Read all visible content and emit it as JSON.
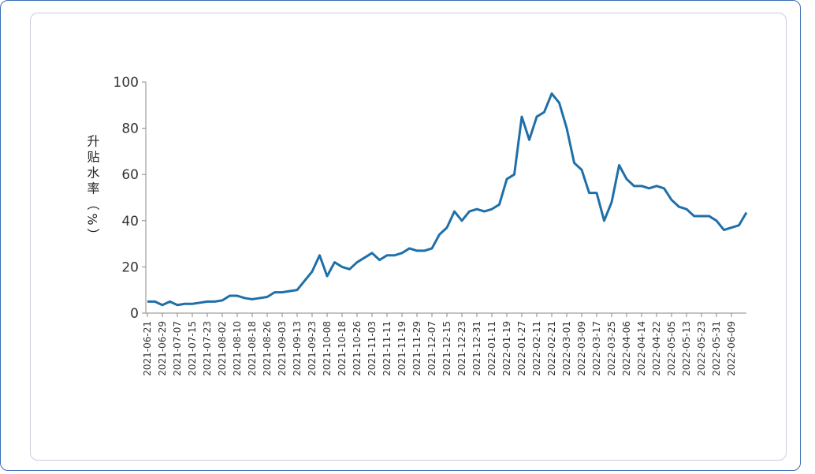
{
  "chart_data": {
    "type": "line",
    "y_label": "升贴水率（%）",
    "categories": [
      "2021-06-21",
      null,
      "2021-06-29",
      null,
      "2021-07-07",
      null,
      "2021-07-15",
      null,
      "2021-07-23",
      null,
      "2021-08-02",
      null,
      "2021-08-10",
      null,
      "2021-08-18",
      null,
      "2021-08-26",
      null,
      "2021-09-03",
      null,
      "2021-09-13",
      null,
      "2021-09-23",
      null,
      "2021-10-08",
      null,
      "2021-10-18",
      null,
      "2021-10-26",
      null,
      "2021-11-03",
      null,
      "2021-11-11",
      null,
      "2021-11-19",
      null,
      "2021-11-29",
      null,
      "2021-12-07",
      null,
      "2021-12-15",
      null,
      "2021-12-23",
      null,
      "2021-12-31",
      null,
      "2022-01-11",
      null,
      "2022-01-19",
      null,
      "2022-01-27",
      null,
      "2022-02-11",
      null,
      "2022-02-21",
      null,
      "2022-03-01",
      null,
      "2022-03-09",
      null,
      "2022-03-17",
      null,
      "2022-03-25",
      null,
      "2022-04-06",
      null,
      "2022-04-14",
      null,
      "2022-04-22",
      null,
      "2022-05-05",
      null,
      "2022-05-13",
      null,
      "2022-05-23",
      null,
      "2022-05-31",
      null,
      "2022-06-09",
      null,
      null
    ],
    "series": [
      {
        "name": "升贴水率",
        "color": "#1f6fa8",
        "values": [
          5,
          5,
          3.5,
          5,
          3.5,
          4,
          4,
          4.5,
          5,
          5,
          5.5,
          7.5,
          7.5,
          6.5,
          6,
          6.5,
          7,
          9,
          9,
          9.5,
          10,
          14,
          18,
          25,
          16,
          22,
          20,
          19,
          22,
          24,
          26,
          23,
          25,
          25,
          26,
          28,
          27,
          27,
          28,
          34,
          37,
          44,
          40,
          44,
          45,
          44,
          45,
          47,
          58,
          60,
          85,
          75,
          85,
          87,
          95,
          91,
          80,
          65,
          62,
          52,
          52,
          40,
          48,
          64,
          58,
          55,
          55,
          54,
          55,
          54,
          49,
          46,
          45,
          42,
          42,
          42,
          40,
          36,
          37,
          38,
          43.5
        ]
      }
    ],
    "ylim": [
      0,
      100
    ],
    "yticks": [
      0,
      20,
      40,
      60,
      80,
      100
    ]
  }
}
